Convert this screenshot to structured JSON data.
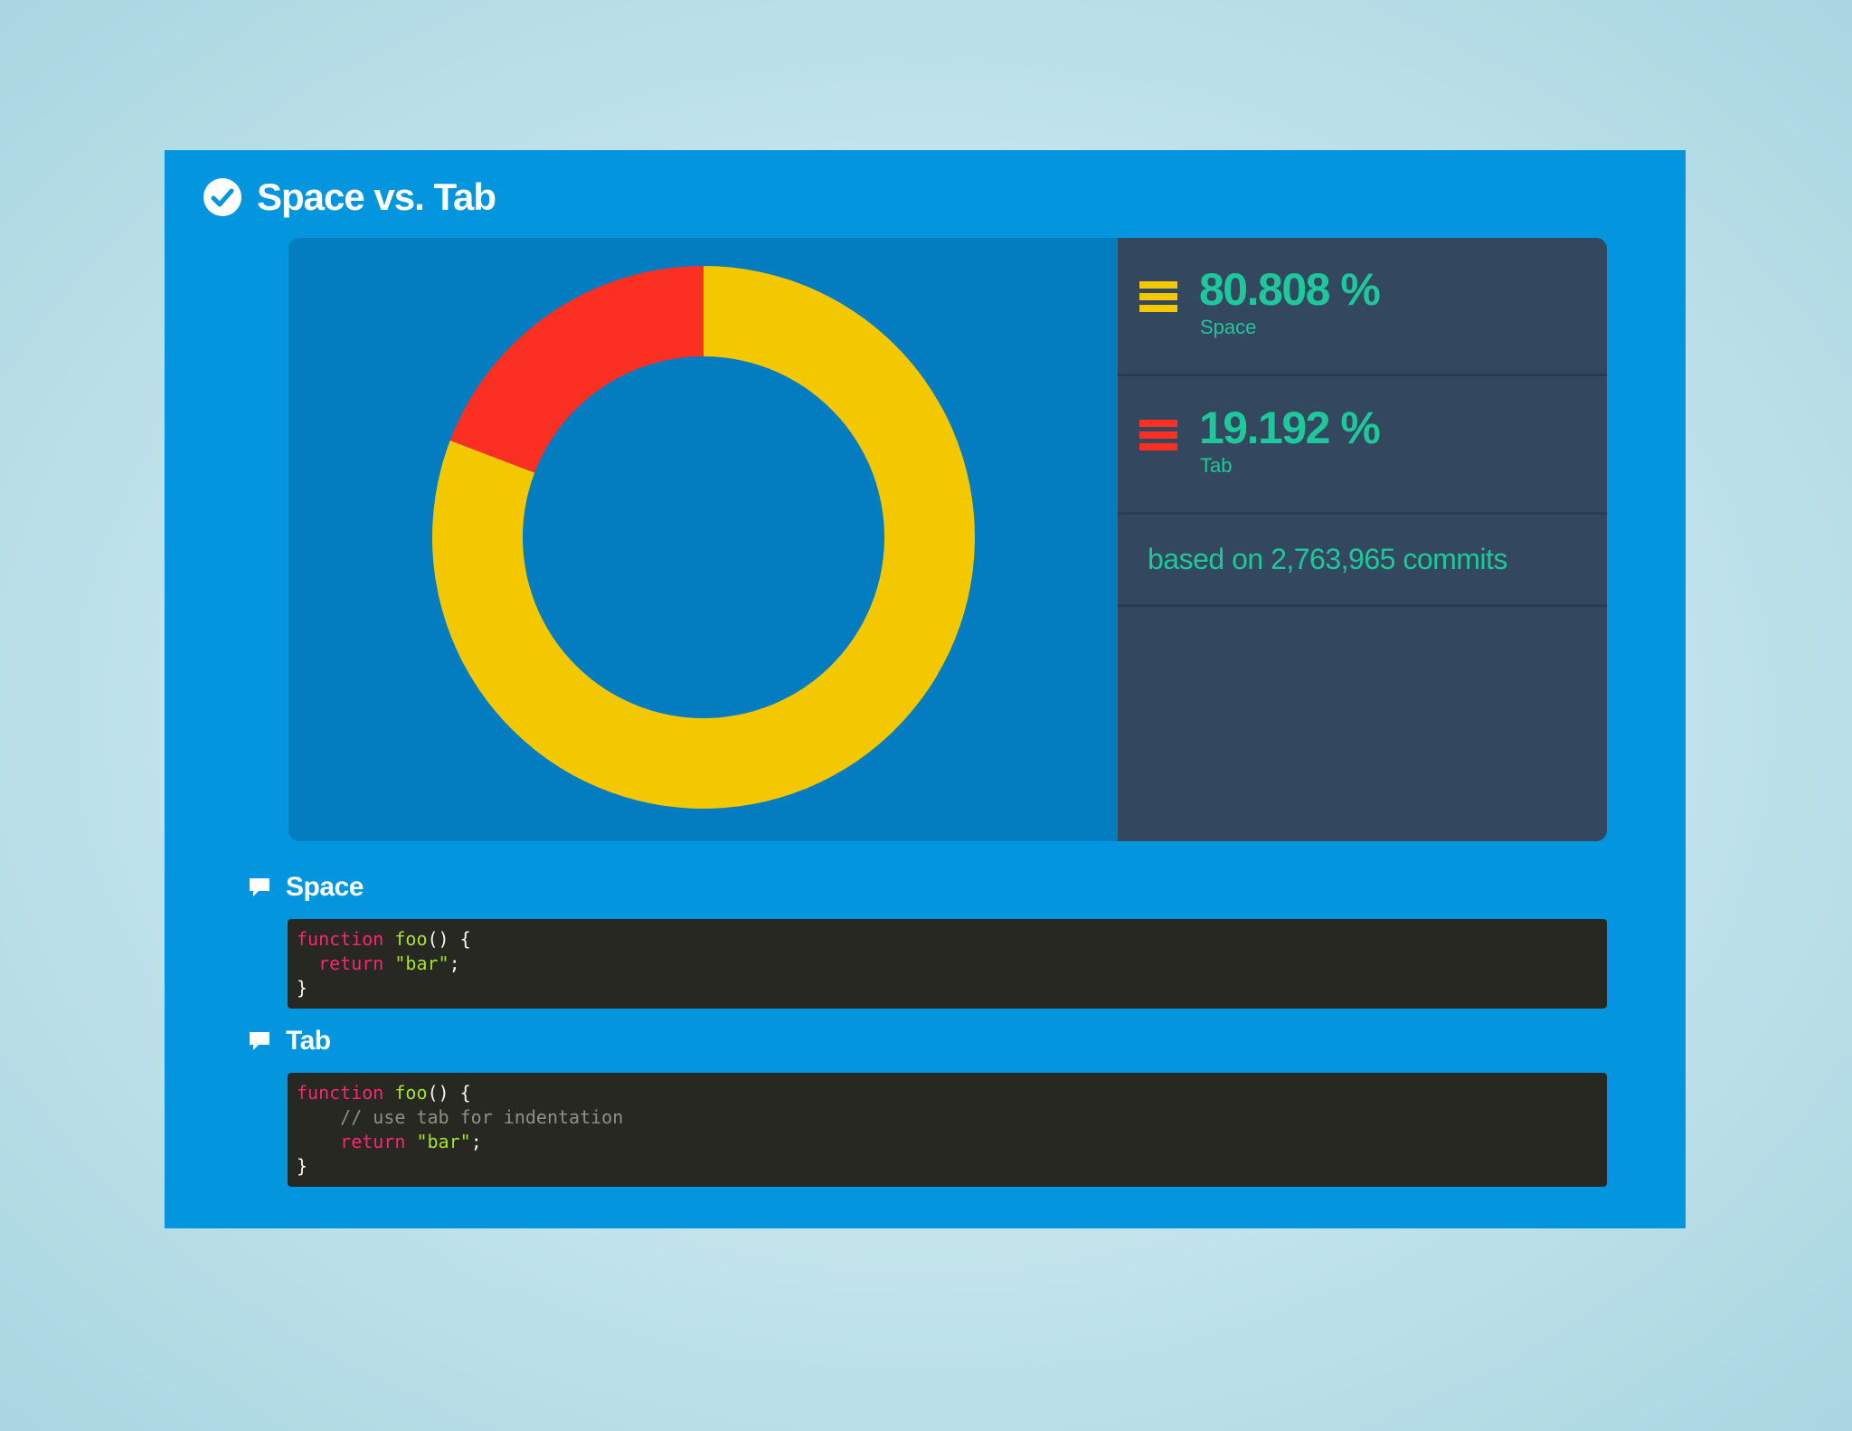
{
  "header": {
    "title": "Space vs. Tab",
    "icon": "check-circle-icon"
  },
  "colors": {
    "space": "#f4c800",
    "tab": "#fc2f23",
    "accent": "#1fc79c",
    "card": "#0396df"
  },
  "chart_data": {
    "type": "pie",
    "variant": "donut",
    "categories": [
      "Space",
      "Tab"
    ],
    "values": [
      80.808,
      19.192
    ],
    "value_labels": [
      "80.808 %",
      "19.192 %"
    ],
    "colors": [
      "#f4c800",
      "#fc2f23"
    ],
    "legend_position": "right"
  },
  "stats": [
    {
      "value": "80.808 %",
      "label": "Space",
      "icon": "stripes-icon-yellow"
    },
    {
      "value": "19.192 %",
      "label": "Tab",
      "icon": "stripes-icon-red"
    }
  ],
  "basis": "based on 2,763,965 commits",
  "sections": [
    {
      "title": "Space",
      "icon": "comment-icon",
      "code": [
        [
          {
            "t": "function",
            "c": "kw"
          },
          {
            "t": " "
          },
          {
            "t": "foo",
            "c": "fn"
          },
          {
            "t": "() {"
          }
        ],
        [
          {
            "t": "  "
          },
          {
            "t": "return",
            "c": "kw"
          },
          {
            "t": " "
          },
          {
            "t": "\"bar\"",
            "c": "str"
          },
          {
            "t": ";"
          }
        ],
        [
          {
            "t": "}"
          }
        ]
      ]
    },
    {
      "title": "Tab",
      "icon": "comment-icon",
      "code": [
        [
          {
            "t": "function",
            "c": "kw"
          },
          {
            "t": " "
          },
          {
            "t": "foo",
            "c": "fn"
          },
          {
            "t": "() {"
          }
        ],
        [
          {
            "t": "    "
          },
          {
            "t": "// use tab for indentation",
            "c": "cm"
          }
        ],
        [
          {
            "t": "    "
          },
          {
            "t": "return",
            "c": "kw"
          },
          {
            "t": " "
          },
          {
            "t": "\"bar\"",
            "c": "str"
          },
          {
            "t": ";"
          }
        ],
        [
          {
            "t": "}"
          }
        ]
      ]
    }
  ]
}
